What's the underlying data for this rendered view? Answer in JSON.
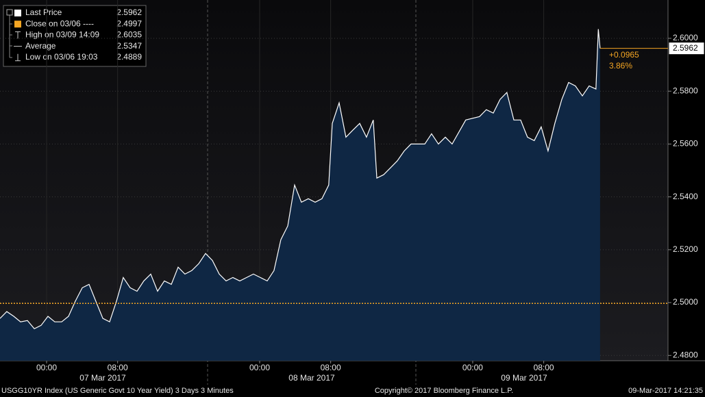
{
  "chart_data": {
    "type": "area",
    "legend": [
      {
        "label": "Last Price",
        "value": 2.5962,
        "color": "#ffffff"
      },
      {
        "label": "Close on 03/06 ----",
        "value": 2.4997,
        "color": "#f5a623"
      },
      {
        "label": "High on 03/09 14:09",
        "value": 2.6035,
        "color": "#cccccc"
      },
      {
        "label": "Average",
        "value": 2.5347,
        "color": "#cccccc"
      },
      {
        "label": "Low on 03/06 19:03",
        "value": 2.4889,
        "color": "#cccccc"
      }
    ],
    "change": {
      "value": 0.0965,
      "label": "+0.0965"
    },
    "change_pct": {
      "value": 3.86,
      "label": "3.86%"
    },
    "x": [
      "2017-03-06T18:45",
      "2017-03-06T19:31",
      "2017-03-06T20:18",
      "2017-03-06T21:04",
      "2017-03-06T21:50",
      "2017-03-06T22:37",
      "2017-03-06T23:23",
      "2017-03-07T00:09",
      "2017-03-07T00:55",
      "2017-03-07T01:42",
      "2017-03-07T02:28",
      "2017-03-07T03:14",
      "2017-03-07T04:01",
      "2017-03-07T04:47",
      "2017-03-07T05:33",
      "2017-03-07T06:20",
      "2017-03-07T07:06",
      "2017-03-07T07:52",
      "2017-03-07T08:38",
      "2017-03-07T09:25",
      "2017-03-07T10:11",
      "2017-03-07T10:57",
      "2017-03-07T11:44",
      "2017-03-07T12:30",
      "2017-03-07T13:16",
      "2017-03-07T14:03",
      "2017-03-07T14:49",
      "2017-03-07T15:35",
      "2017-03-07T16:21",
      "2017-03-07T17:08",
      "2017-03-07T17:54",
      "2017-03-07T18:40",
      "2017-03-07T19:27",
      "2017-03-07T20:13",
      "2017-03-07T20:59",
      "2017-03-07T21:46",
      "2017-03-07T22:32",
      "2017-03-07T23:18",
      "2017-03-08T00:04",
      "2017-03-08T00:51",
      "2017-03-08T01:37",
      "2017-03-08T02:23",
      "2017-03-08T03:10",
      "2017-03-08T03:56",
      "2017-03-08T04:42",
      "2017-03-08T05:29",
      "2017-03-08T06:15",
      "2017-03-08T07:01",
      "2017-03-08T07:47",
      "2017-03-08T08:11",
      "2017-03-08T08:57",
      "2017-03-08T09:43",
      "2017-03-08T10:29",
      "2017-03-08T11:16",
      "2017-03-08T12:02",
      "2017-03-08T12:48",
      "2017-03-08T13:12",
      "2017-03-08T13:58",
      "2017-03-08T14:44",
      "2017-03-08T15:30",
      "2017-03-08T16:17",
      "2017-03-08T17:03",
      "2017-03-08T18:36",
      "2017-03-08T19:22",
      "2017-03-08T20:08",
      "2017-03-08T20:55",
      "2017-03-08T21:41",
      "2017-03-08T23:13",
      "2017-03-09T00:46",
      "2017-03-09T01:32",
      "2017-03-09T02:19",
      "2017-03-09T03:05",
      "2017-03-09T03:51",
      "2017-03-09T04:38",
      "2017-03-09T05:24",
      "2017-03-09T06:10",
      "2017-03-09T06:56",
      "2017-03-09T07:43",
      "2017-03-09T08:29",
      "2017-03-09T09:15",
      "2017-03-09T10:02",
      "2017-03-09T10:48",
      "2017-03-09T11:34",
      "2017-03-09T12:21",
      "2017-03-09T13:07",
      "2017-03-09T13:53",
      "2017-03-09T14:09",
      "2017-03-09T14:21"
    ],
    "values": [
      2.494,
      2.4966,
      2.4948,
      2.4927,
      2.4932,
      2.4901,
      2.4914,
      2.4948,
      2.4927,
      2.4927,
      2.4948,
      2.5005,
      2.5056,
      2.5069,
      2.5005,
      2.494,
      2.4927,
      2.5005,
      2.5095,
      2.5056,
      2.5043,
      2.5082,
      2.5108,
      2.5043,
      2.5082,
      2.5069,
      2.5134,
      2.5108,
      2.5121,
      2.5147,
      2.5186,
      2.516,
      2.5108,
      2.5082,
      2.5095,
      2.5082,
      2.5095,
      2.5108,
      2.5095,
      2.5082,
      2.5121,
      2.5238,
      2.529,
      2.5445,
      2.538,
      2.5393,
      2.538,
      2.5393,
      2.5445,
      2.5678,
      2.5756,
      2.5626,
      2.5652,
      2.5678,
      2.5626,
      2.5691,
      2.5471,
      2.5484,
      2.551,
      2.5536,
      2.5574,
      2.56,
      2.56,
      2.5639,
      2.56,
      2.5626,
      2.56,
      2.5691,
      2.5704,
      2.573,
      2.5717,
      2.5769,
      2.5795,
      2.5691,
      2.5691,
      2.5626,
      2.5613,
      2.5665,
      2.5574,
      2.5678,
      2.5769,
      2.5833,
      2.582,
      2.5782,
      2.582,
      2.5808,
      2.6035,
      2.5962
    ],
    "color": "#ffffff",
    "fill": "#0f2744",
    "xlim": [
      "2017-03-06T18:45",
      "2017-03-09T22:00"
    ],
    "xticks": [
      {
        "value": "2017-03-07T00:00",
        "label": "00:00"
      },
      {
        "value": "2017-03-07T08:00",
        "label": "08:00"
      },
      {
        "value": "2017-03-08T00:00",
        "label": "00:00"
      },
      {
        "value": "2017-03-08T08:00",
        "label": "08:00"
      },
      {
        "value": "2017-03-09T00:00",
        "label": "00:00"
      },
      {
        "value": "2017-03-09T08:00",
        "label": "08:00"
      }
    ],
    "day_labels": [
      "07 Mar 2017",
      "08 Mar 2017",
      "09 Mar 2017"
    ],
    "ylim": [
      2.478,
      2.6145
    ],
    "yticks": [
      {
        "value": 2.48,
        "label": "2.4800"
      },
      {
        "value": 2.5,
        "label": "2.5000"
      },
      {
        "value": 2.52,
        "label": "2.5200"
      },
      {
        "value": 2.54,
        "label": "2.5400"
      },
      {
        "value": 2.56,
        "label": "2.5600"
      },
      {
        "value": 2.58,
        "label": "2.5800"
      },
      {
        "value": 2.6,
        "label": "2.6000"
      }
    ],
    "grid": true,
    "footer": {
      "left": "USGG10YR Index (US Generic Govt 10 Year Yield) 3 Days 3 Minutes",
      "center": "Copyright© 2017 Bloomberg Finance L.P.",
      "right": "09-Mar-2017 14:21:35"
    }
  }
}
